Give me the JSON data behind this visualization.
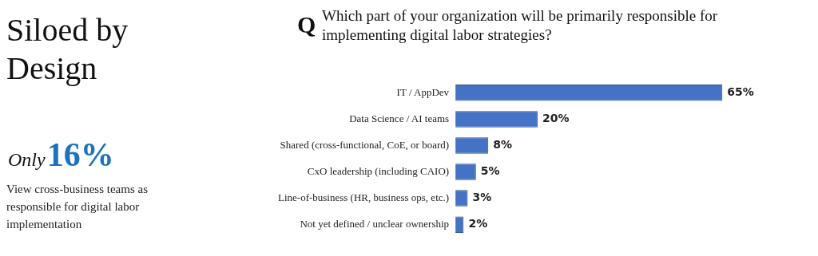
{
  "chart_data": {
    "type": "bar",
    "orientation": "horizontal",
    "title": "Which part of your organization will be primarily responsible for implementing digital labor strategies?",
    "categories": [
      "IT / AppDev",
      "Data Science / AI teams",
      "Shared (cross-functional, CoE, or board)",
      "CxO leadership (including CAIO)",
      "Line-of-business (HR, business ops, etc.)",
      "Not yet defined / unclear ownership"
    ],
    "values": [
      65,
      20,
      8,
      5,
      3,
      2
    ],
    "value_labels": [
      "65%",
      "20%",
      "8%",
      "5%",
      "3%",
      "2%"
    ],
    "color": "#4472c4",
    "legend": false,
    "tick_labels": "y",
    "annotations": [
      "Q",
      "Siloed by Design",
      "Only",
      "16%",
      "View cross-business teams as responsible for digital labor implementation"
    ]
  }
}
